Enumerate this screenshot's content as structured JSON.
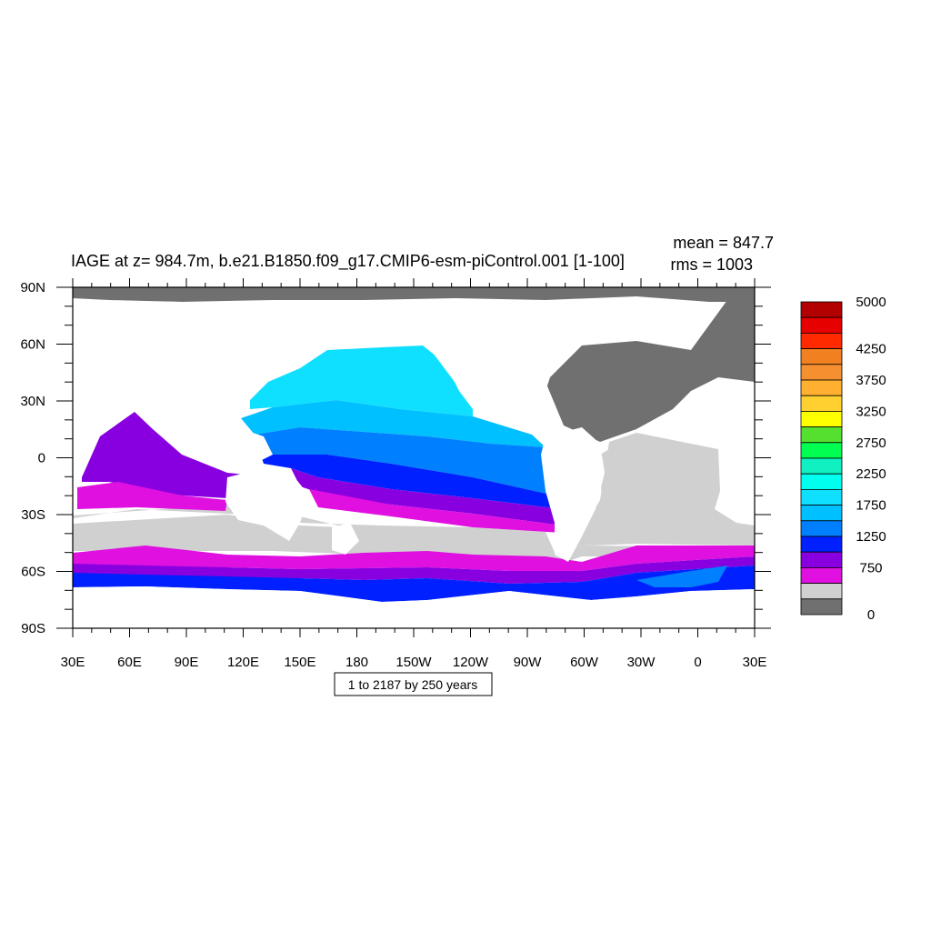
{
  "title": "IAGE at z= 984.7m, b.e21.B1850.f09_g17.CMIP6-esm-piControl.001 [1-100]",
  "stats": {
    "mean": "mean = 847.7",
    "rms": "rms = 1003"
  },
  "footer_box": "1 to 2187 by 250 years",
  "chart_data": {
    "type": "heatmap",
    "title": "IAGE at z= 984.7m, b.e21.B1850.f09_g17.CMIP6-esm-piControl.001 [1-100]",
    "variable": "IAGE",
    "depth": "z= 984.7m",
    "case": "b.e21.B1850.f09_g17.CMIP6-esm-piControl.001",
    "years": "[1-100]",
    "mean": 847.7,
    "rms": 1003,
    "contour_interval_note": "1 to 2187 by 250 years",
    "x_ticks": [
      "30E",
      "60E",
      "90E",
      "120E",
      "150E",
      "180",
      "150W",
      "120W",
      "90W",
      "60W",
      "30W",
      "0",
      "30E"
    ],
    "y_ticks": [
      "90N",
      "60N",
      "30N",
      "0",
      "30S",
      "60S",
      "90S"
    ],
    "lon_range": [
      30,
      390
    ],
    "lat_range": [
      -90,
      90
    ],
    "colorbar": {
      "labels": [
        "5000",
        "4250",
        "3750",
        "3250",
        "2750",
        "2250",
        "1750",
        "1250",
        "750",
        "0"
      ],
      "label_values": [
        5000,
        4250,
        3750,
        3250,
        2750,
        2250,
        1750,
        1250,
        750,
        0
      ],
      "colors": [
        "#b30000",
        "#e60000",
        "#ff2a00",
        "#f08020",
        "#f59030",
        "#ffb030",
        "#ffd030",
        "#ffff00",
        "#55e030",
        "#00ff50",
        "#10f0c0",
        "#00ffee",
        "#10e0ff",
        "#00c0ff",
        "#0080ff",
        "#0020ff",
        "#8800e0",
        "#e010e0",
        "#d0d0d0",
        "#707070"
      ]
    },
    "colors": {
      "land": "#ffffff",
      "arctic": "#707070",
      "gray_ocean": "#d0d0d0"
    }
  }
}
